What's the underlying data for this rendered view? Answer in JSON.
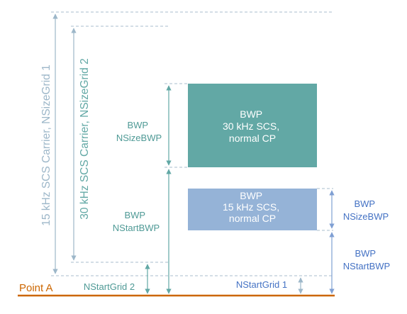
{
  "carrier_labels": {
    "carrier_15": "15 kHz SCS Carrier, NSizeGrid 1",
    "carrier_30": "30 kHz SCS Carrier, NSizeGrid 2"
  },
  "bwp_30": {
    "block_lines": [
      "BWP",
      "30 kHz SCS,",
      "normal CP"
    ],
    "size_lines": [
      "BWP",
      "NSizeBWP"
    ],
    "start_lines": [
      "BWP",
      "NStartBWP"
    ]
  },
  "bwp_15": {
    "block_lines": [
      "BWP",
      "15 kHz SCS,",
      "normal CP"
    ],
    "size_lines": [
      "BWP",
      "NSizeBWP"
    ],
    "start_lines": [
      "BWP",
      "NStartBWP"
    ]
  },
  "nstart_grid_2": "NStartGrid 2",
  "nstart_grid_1": "NStartGrid 1",
  "point_a": "Point A",
  "colors": {
    "bwp_30_fill": "#62a8a5",
    "bwp_15_fill": "#95b3d7",
    "teal_text": "#4f9a96",
    "blue_text": "#4472c4",
    "carrier_text": "#9db7c9",
    "point_a": "#cc6600",
    "dashed": "#a8bccc"
  }
}
